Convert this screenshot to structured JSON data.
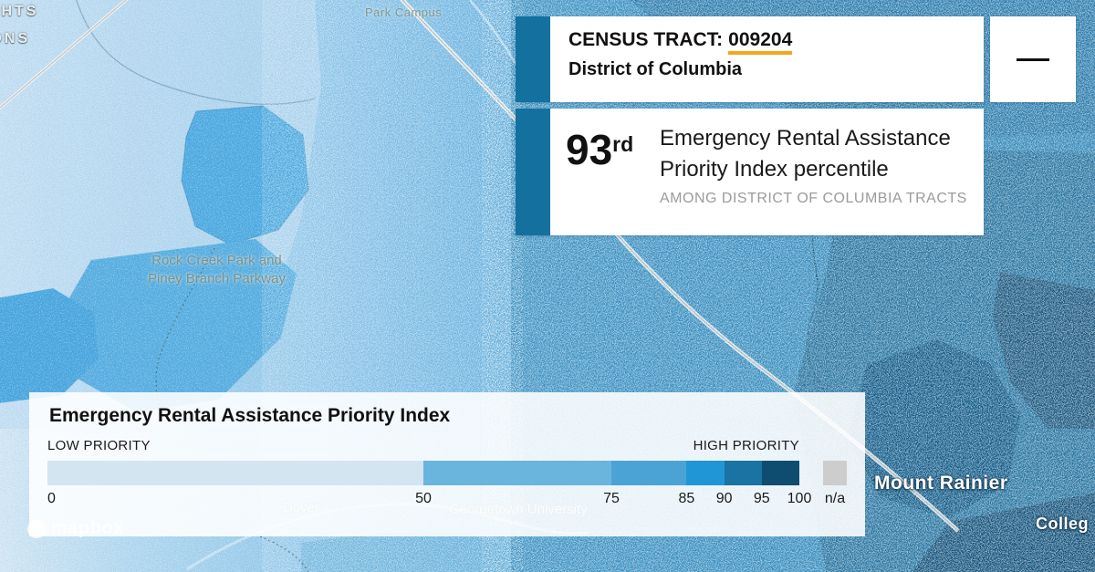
{
  "tooltip": {
    "accent_color": "#14719f",
    "underline_color": "#f2a71e",
    "tract_label": "CENSUS TRACT:",
    "tract_value": "009204",
    "state": "District of Columbia",
    "percentile_value": "93",
    "percentile_suffix": "rd",
    "percentile_line1": "Emergency Rental Assistance",
    "percentile_line2": "Priority Index percentile",
    "percentile_subtext": "AMONG DISTRICT OF COLUMBIA TRACTS"
  },
  "legend": {
    "title": "Emergency Rental Assistance Priority Index",
    "low_label": "LOW PRIORITY",
    "high_label": "HIGH PRIORITY",
    "na_label": "n/a",
    "na_color": "#cdcdcd",
    "ticks": [
      0,
      50,
      75,
      85,
      90,
      95,
      100
    ],
    "stops": [
      {
        "from": 0,
        "to": 50,
        "color": "#d3e5f0"
      },
      {
        "from": 50,
        "to": 75,
        "color": "#69b5dd"
      },
      {
        "from": 75,
        "to": 85,
        "color": "#4ba3d5"
      },
      {
        "from": 85,
        "to": 90,
        "color": "#2196d6"
      },
      {
        "from": 90,
        "to": 95,
        "color": "#1a73a2"
      },
      {
        "from": 95,
        "to": 100,
        "color": "#0f4d70"
      }
    ]
  },
  "map": {
    "labels": {
      "corner_line1": "GHTS",
      "corner_line2": "IONS",
      "campus": "Park Campus",
      "park_line1": "Rock Creek Park and",
      "park_line2": "Piney Branch Parkway",
      "dover": "Dover",
      "university": "Georgetown University",
      "mount_rainier": "Mount Rainier",
      "college": "Colleg",
      "logo": "mapbox"
    }
  }
}
